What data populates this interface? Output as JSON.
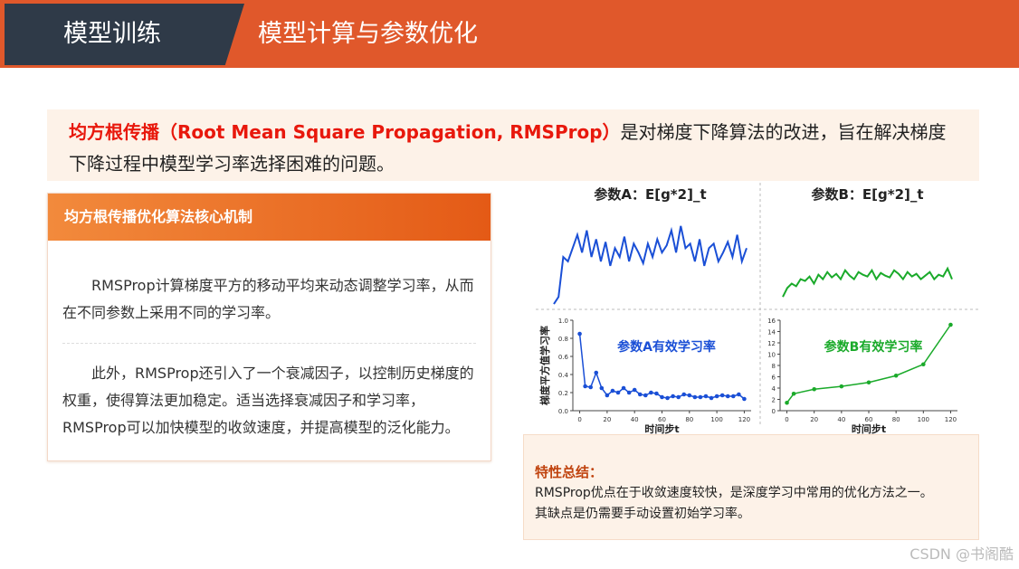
{
  "header": {
    "section": "模型训练",
    "title": "模型计算与参数优化"
  },
  "intro": {
    "highlight": "均方根传播（Root Mean Square Propagation, RMSProp）",
    "text": "是对梯度下降算法的改进，旨在解决梯度下降过程中模型学习率选择困难的问题。"
  },
  "panel": {
    "title": "均方根传播优化算法核心机制",
    "paragraphs": [
      "RMSProp计算梯度平方的移动平均来动态调整学习率，从而在不同参数上采用不同的学习率。",
      "此外，RMSProp还引入了一个衰减因子，以控制历史梯度的权重，使得算法更加稳定。适当选择衰减因子和学习率，RMSProp可以加快模型的收敛速度，并提高模型的泛化能力。"
    ]
  },
  "summary": {
    "title": "特性总结：",
    "lines": [
      "RMSProp优点在于收敛速度较快，是深度学习中常用的优化方法之一。",
      "其缺点是仍需要手动设置初始学习率。"
    ]
  },
  "watermark": "CSDN @书阁酷",
  "chart_data": [
    {
      "type": "line",
      "title": "参数A：E[g*2]_t",
      "color": "#1a4fd6",
      "ylim": [
        0,
        1
      ],
      "values": [
        0.02,
        0.1,
        0.55,
        0.5,
        0.65,
        0.8,
        0.6,
        0.85,
        0.55,
        0.75,
        0.5,
        0.72,
        0.45,
        0.65,
        0.55,
        0.78,
        0.5,
        0.7,
        0.6,
        0.48,
        0.7,
        0.55,
        0.75,
        0.6,
        0.68,
        0.85,
        0.6,
        0.9,
        0.65,
        0.7,
        0.5,
        0.75,
        0.45,
        0.65,
        0.7,
        0.5,
        0.6,
        0.72,
        0.55,
        0.8,
        0.5,
        0.65
      ]
    },
    {
      "type": "line",
      "title": "参数B：E[g*2]_t",
      "color": "#1aaa2a",
      "ylim": [
        0,
        1
      ],
      "values": [
        0.1,
        0.2,
        0.25,
        0.22,
        0.3,
        0.28,
        0.33,
        0.25,
        0.35,
        0.3,
        0.38,
        0.32,
        0.36,
        0.3,
        0.4,
        0.34,
        0.3,
        0.38,
        0.35,
        0.33,
        0.4,
        0.3,
        0.37,
        0.34,
        0.32,
        0.4,
        0.36,
        0.3,
        0.38,
        0.33,
        0.36,
        0.3,
        0.34,
        0.38,
        0.3,
        0.35,
        0.33,
        0.42,
        0.3
      ]
    },
    {
      "type": "scatter-line",
      "annotation": "参数A有效学习率",
      "color": "#1a4fd6",
      "xlabel": "时间步t",
      "ylabel": "梯度平方值学习率",
      "xlim": [
        -5,
        125
      ],
      "ylim": [
        0,
        1
      ],
      "xticks": [
        0,
        20,
        40,
        60,
        80,
        100,
        120
      ],
      "yticks": [
        {
          "value": 0,
          "label": "0.0"
        },
        0.2,
        0.4,
        0.6,
        0.8,
        {
          "value": 1,
          "label": "1.0"
        }
      ],
      "x": [
        0,
        4,
        8,
        12,
        16,
        20,
        24,
        28,
        32,
        36,
        40,
        44,
        48,
        52,
        56,
        60,
        64,
        68,
        72,
        76,
        80,
        84,
        88,
        92,
        96,
        100,
        104,
        108,
        112,
        116,
        120
      ],
      "values": [
        0.85,
        0.27,
        0.26,
        0.42,
        0.25,
        0.17,
        0.22,
        0.2,
        0.25,
        0.2,
        0.23,
        0.18,
        0.17,
        0.2,
        0.19,
        0.15,
        0.14,
        0.16,
        0.15,
        0.18,
        0.17,
        0.15,
        0.15,
        0.16,
        0.14,
        0.16,
        0.17,
        0.16,
        0.16,
        0.18,
        0.13
      ]
    },
    {
      "type": "scatter-line",
      "annotation": "参数B有效学习率",
      "color": "#1aaa2a",
      "xlabel": "时间步t",
      "xlim": [
        -5,
        125
      ],
      "ylim": [
        0,
        16
      ],
      "xticks": [
        0,
        20,
        40,
        60,
        80,
        100,
        120
      ],
      "yticks": [
        0,
        2,
        4,
        6,
        8,
        10,
        12,
        14,
        16
      ],
      "x": [
        0,
        5,
        20,
        40,
        60,
        80,
        100,
        120
      ],
      "values": [
        1.4,
        3,
        3.8,
        4.3,
        5,
        6.2,
        8.2,
        15.2
      ]
    }
  ]
}
